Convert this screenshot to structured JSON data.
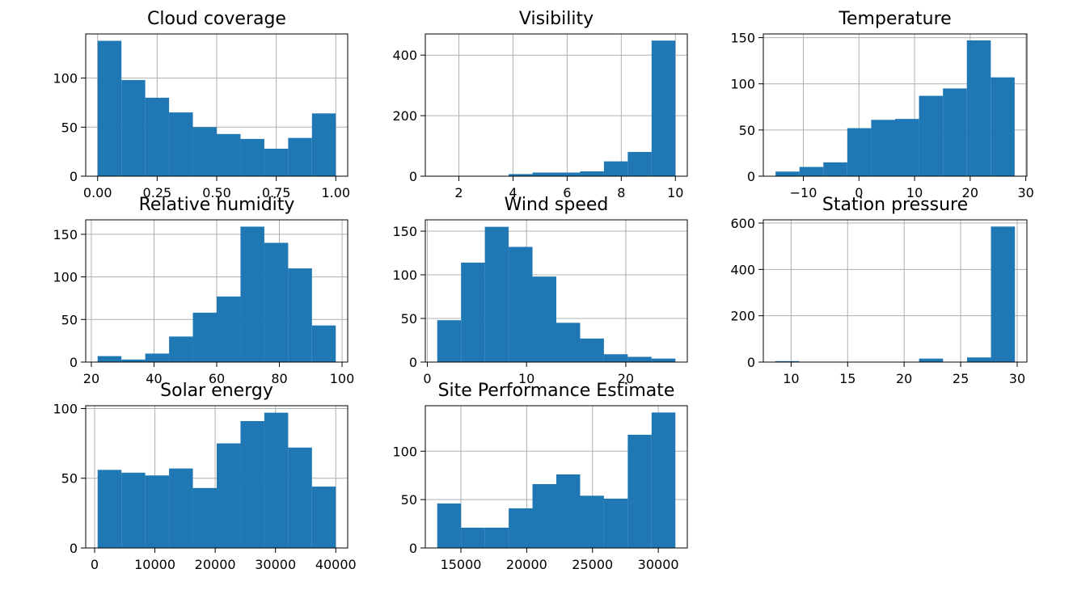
{
  "chart_data": [
    {
      "type": "bar",
      "title": "Cloud coverage",
      "bin_edges": [
        0,
        0.1,
        0.2,
        0.3,
        0.4,
        0.5,
        0.6,
        0.7,
        0.8,
        0.9,
        1.0
      ],
      "values": [
        138,
        98,
        80,
        65,
        50,
        43,
        38,
        28,
        39,
        64
      ],
      "xlim": [
        -0.05,
        1.05
      ],
      "ylim": [
        0,
        145
      ],
      "xticks": [
        0,
        0.25,
        0.5,
        0.75,
        1.0
      ],
      "xtick_labels": [
        "0.00",
        "0.25",
        "0.50",
        "0.75",
        "1.00"
      ],
      "yticks": [
        0,
        50,
        100
      ],
      "ytick_labels": [
        "0",
        "50",
        "100"
      ],
      "grid": true,
      "color": "#1f77b4"
    },
    {
      "type": "bar",
      "title": "Visibility",
      "bin_edges": [
        1.2,
        2.08,
        2.96,
        3.84,
        4.72,
        5.6,
        6.48,
        7.36,
        8.24,
        9.12,
        10.0
      ],
      "values": [
        0,
        0,
        0,
        7,
        12,
        12,
        16,
        49,
        80,
        448
      ],
      "xlim": [
        0.76,
        10.44
      ],
      "ylim": [
        0,
        470
      ],
      "xticks": [
        2,
        4,
        6,
        8,
        10
      ],
      "xtick_labels": [
        "2",
        "4",
        "6",
        "8",
        "10"
      ],
      "yticks": [
        0,
        200,
        400
      ],
      "ytick_labels": [
        "0",
        "200",
        "400"
      ],
      "grid": true,
      "color": "#1f77b4"
    },
    {
      "type": "bar",
      "title": "Temperature",
      "bin_edges": [
        -15.0,
        -10.7,
        -6.4,
        -2.1,
        2.2,
        6.5,
        10.8,
        15.1,
        19.4,
        23.7,
        28.0
      ],
      "values": [
        5,
        10,
        15,
        52,
        61,
        62,
        87,
        95,
        147,
        107
      ],
      "xlim": [
        -17.2,
        30.2
      ],
      "ylim": [
        0,
        154
      ],
      "xticks": [
        -10,
        0,
        10,
        20,
        30
      ],
      "xtick_labels": [
        "−10",
        "0",
        "10",
        "20",
        "30"
      ],
      "yticks": [
        0,
        50,
        100,
        150
      ],
      "ytick_labels": [
        "0",
        "50",
        "100",
        "150"
      ],
      "grid": true,
      "color": "#1f77b4"
    },
    {
      "type": "bar",
      "title": "Relative humidity",
      "bin_edges": [
        22,
        29.6,
        37.2,
        44.8,
        52.4,
        60.0,
        67.6,
        75.2,
        82.8,
        90.4,
        98
      ],
      "values": [
        7,
        3,
        10,
        30,
        58,
        77,
        159,
        140,
        110,
        43
      ],
      "xlim": [
        18.2,
        101.8
      ],
      "ylim": [
        0,
        167
      ],
      "xticks": [
        20,
        40,
        60,
        80,
        100
      ],
      "xtick_labels": [
        "20",
        "40",
        "60",
        "80",
        "100"
      ],
      "yticks": [
        0,
        50,
        100,
        150
      ],
      "ytick_labels": [
        "0",
        "50",
        "100",
        "150"
      ],
      "grid": true,
      "color": "#1f77b4"
    },
    {
      "type": "bar",
      "title": "Wind speed",
      "bin_edges": [
        1,
        3.4,
        5.8,
        8.2,
        10.6,
        13.0,
        15.4,
        17.8,
        20.2,
        22.6,
        25
      ],
      "values": [
        48,
        114,
        155,
        132,
        98,
        45,
        27,
        9,
        6,
        4
      ],
      "xlim": [
        -0.2,
        26.2
      ],
      "ylim": [
        0,
        163
      ],
      "xticks": [
        0,
        10,
        20
      ],
      "xtick_labels": [
        "0",
        "10",
        "20"
      ],
      "yticks": [
        0,
        50,
        100,
        150
      ],
      "ytick_labels": [
        "0",
        "50",
        "100",
        "150"
      ],
      "grid": true,
      "color": "#1f77b4"
    },
    {
      "type": "bar",
      "title": "Station pressure",
      "bin_edges": [
        8.6,
        10.72,
        12.84,
        14.96,
        17.08,
        19.2,
        21.32,
        23.44,
        25.56,
        27.68,
        29.8
      ],
      "values": [
        4,
        0,
        0,
        0,
        0,
        0,
        15,
        0,
        20,
        585
      ],
      "xlim": [
        7.54,
        30.86
      ],
      "ylim": [
        0,
        614
      ],
      "xticks": [
        10,
        15,
        20,
        25,
        30
      ],
      "xtick_labels": [
        "10",
        "15",
        "20",
        "25",
        "30"
      ],
      "yticks": [
        0,
        200,
        400,
        600
      ],
      "ytick_labels": [
        "0",
        "200",
        "400",
        "600"
      ],
      "grid": true,
      "color": "#1f77b4"
    },
    {
      "type": "bar",
      "title": "Solar energy",
      "bin_edges": [
        500,
        4450,
        8400,
        12350,
        16300,
        20250,
        24200,
        28150,
        32100,
        36050,
        40000
      ],
      "values": [
        56,
        54,
        52,
        57,
        43,
        75,
        91,
        97,
        72,
        44
      ],
      "xlim": [
        -1475,
        41975
      ],
      "ylim": [
        0,
        102
      ],
      "xticks": [
        0,
        10000,
        20000,
        30000,
        40000
      ],
      "xtick_labels": [
        "0",
        "10000",
        "20000",
        "30000",
        "40000"
      ],
      "yticks": [
        0,
        50,
        100
      ],
      "ytick_labels": [
        "0",
        "50",
        "100"
      ],
      "grid": true,
      "color": "#1f77b4"
    },
    {
      "type": "bar",
      "title": "Site Performance Estimate",
      "bin_edges": [
        13200,
        15010,
        16820,
        18630,
        20440,
        22250,
        24060,
        25870,
        27680,
        29490,
        31300
      ],
      "values": [
        46,
        21,
        21,
        41,
        66,
        76,
        54,
        51,
        117,
        140
      ],
      "xlim": [
        12295,
        32205
      ],
      "ylim": [
        0,
        147
      ],
      "xticks": [
        15000,
        20000,
        25000,
        30000
      ],
      "xtick_labels": [
        "15000",
        "20000",
        "25000",
        "30000"
      ],
      "yticks": [
        0,
        50,
        100
      ],
      "ytick_labels": [
        "0",
        "50",
        "100"
      ],
      "grid": true,
      "color": "#1f77b4"
    }
  ]
}
